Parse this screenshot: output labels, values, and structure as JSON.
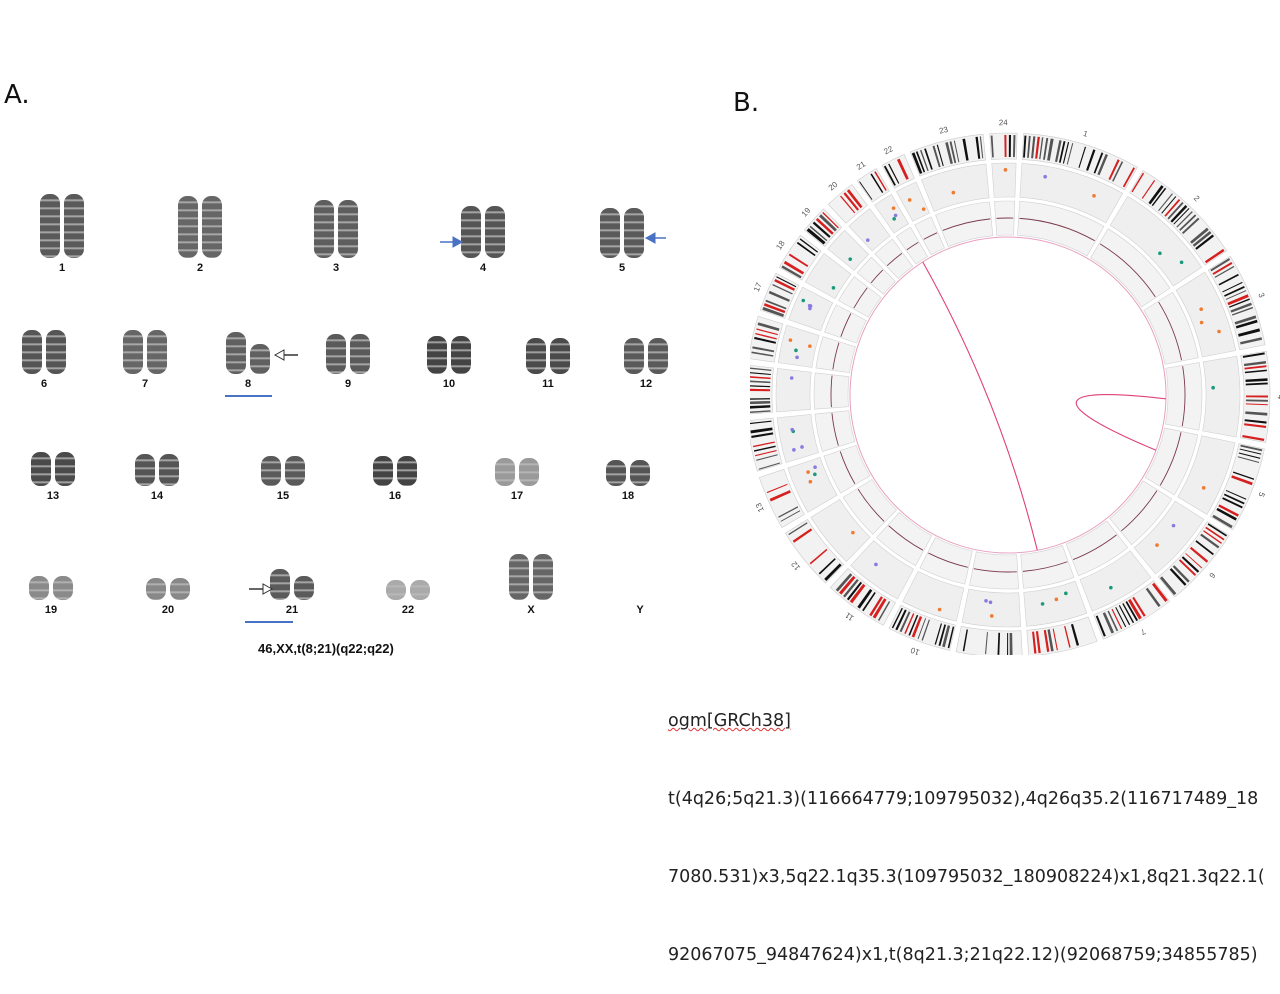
{
  "panels": {
    "a_label": "A.",
    "b_label": "B."
  },
  "karyotype": {
    "caption": "46,XX,t(8;21)(q22;q22)",
    "rows": [
      [
        "1",
        "2",
        "3",
        "4",
        "5"
      ],
      [
        "6",
        "7",
        "8",
        "9",
        "10",
        "11",
        "12"
      ],
      [
        "13",
        "14",
        "15",
        "16",
        "17",
        "18"
      ],
      [
        "19",
        "20",
        "21",
        "22",
        "X",
        "Y"
      ]
    ],
    "arrows": {
      "chr4": "filled-arrow-right",
      "chr5": "filled-arrow-left",
      "chr8": "open-arrow-left",
      "chr21": "open-arrow-right"
    },
    "underlined": [
      "8",
      "21"
    ],
    "underline_color": "#4a72c4"
  },
  "circos": {
    "outer_labels": [
      "1",
      "2",
      "3",
      "4",
      "5",
      "6",
      "7",
      "8",
      "9",
      "10",
      "11",
      "12",
      "13",
      "14",
      "15",
      "16",
      "17",
      "18",
      "19",
      "20",
      "21",
      "22",
      "23",
      "24"
    ],
    "link_color": "#e0407a",
    "band_red": "#d62020",
    "dot_colors": [
      "#1a9a7a",
      "#f07a30",
      "#8a7ae0"
    ]
  },
  "ogm": {
    "line1": "ogm[GRCh38]",
    "line2": "t(4q26;5q21.3)(116664779;109795032),4q26q35.2(116717489_18",
    "line3": "7080.531)x3,5q22.1q35.3(109795032_180908224)x1,8q21.3q22.1(",
    "line4": "92067075_94847624)x1,t(8q21.3;21q22.12)(92068759;34855785)"
  }
}
